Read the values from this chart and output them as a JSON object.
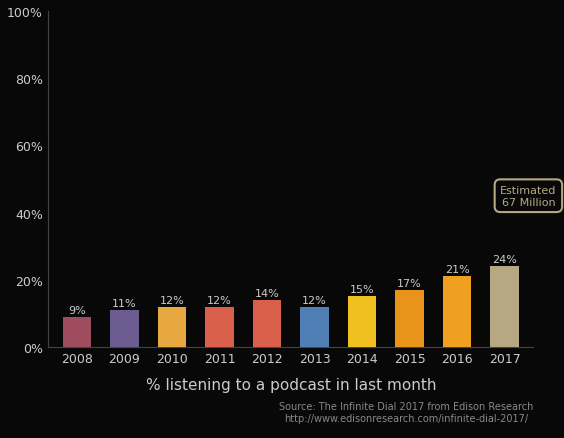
{
  "years": [
    "2008",
    "2009",
    "2010",
    "2011",
    "2012",
    "2013",
    "2014",
    "2015",
    "2016",
    "2017"
  ],
  "values": [
    9,
    11,
    12,
    12,
    14,
    12,
    15,
    17,
    21,
    24
  ],
  "bar_colors": [
    "#9e4c5e",
    "#6b5b8e",
    "#e8a840",
    "#d9604a",
    "#d95f4b",
    "#4f7fb5",
    "#f0c020",
    "#e8941a",
    "#f0a020",
    "#b5a882"
  ],
  "xlabel": "% listening to a podcast in last month",
  "ylim": [
    0,
    100
  ],
  "yticks": [
    0,
    20,
    40,
    60,
    80,
    100
  ],
  "ytick_labels": [
    "0%",
    "20%",
    "40%",
    "60%",
    "80%",
    "100%"
  ],
  "background_color": "#080808",
  "text_color": "#cccccc",
  "annotation_box_color": "#b5a882",
  "annotation_text": "Estimated\n67 Million",
  "source_text": "Source: The Infinite Dial 2017 from Edison Research\nhttp://www.edisonresearch.com/infinite-dial-2017/",
  "bar_label_color": "#cccccc",
  "xlabel_fontsize": 11,
  "tick_fontsize": 9,
  "label_fontsize": 8,
  "source_fontsize": 7,
  "annotation_fontsize": 8
}
